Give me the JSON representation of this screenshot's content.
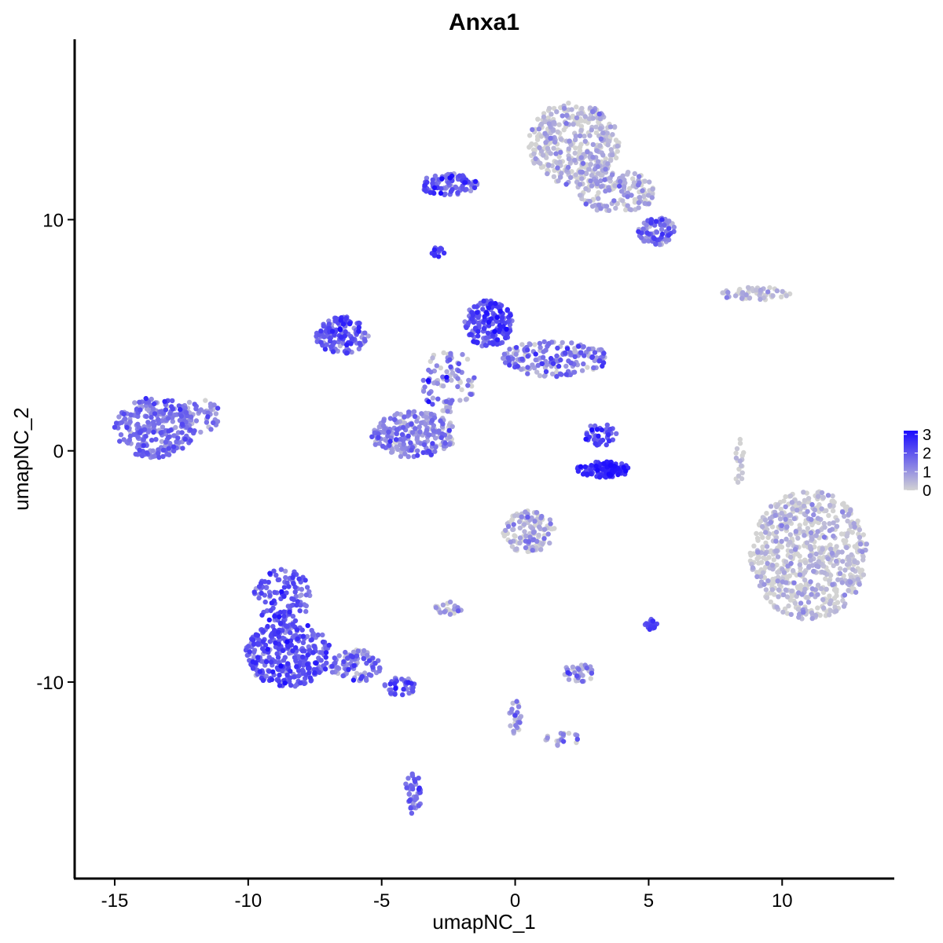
{
  "chart_data": {
    "type": "scatter",
    "title": "Anxa1",
    "xlabel": "umapNC_1",
    "ylabel": "umapNC_2",
    "xlim": [
      -16.5,
      14.2
    ],
    "ylim": [
      -18.5,
      17.8
    ],
    "x_ticks": [
      {
        "value": -15,
        "label": "-15"
      },
      {
        "value": -10,
        "label": "-10"
      },
      {
        "value": -5,
        "label": "-5"
      },
      {
        "value": 0,
        "label": "0"
      },
      {
        "value": 5,
        "label": "5"
      },
      {
        "value": 10,
        "label": "10"
      }
    ],
    "y_ticks": [
      {
        "value": -10,
        "label": "-10"
      },
      {
        "value": 0,
        "label": "0"
      },
      {
        "value": 10,
        "label": "10"
      }
    ],
    "color_scale": {
      "low": "#d3d3d3",
      "high": "#1a0aff",
      "min": 0,
      "max": 3.2,
      "ticks": [
        {
          "value": 0,
          "label": "0"
        },
        {
          "value": 1,
          "label": "1"
        },
        {
          "value": 2,
          "label": "2"
        },
        {
          "value": 3,
          "label": "3"
        }
      ]
    },
    "legend_position": "right",
    "grid": false,
    "clusters": [
      {
        "cx": -13.5,
        "cy": 1.0,
        "rx": 1.5,
        "ry": 1.3,
        "n": 260,
        "mean": 1.5,
        "sd": 0.5
      },
      {
        "cx": -11.8,
        "cy": 1.5,
        "rx": 0.8,
        "ry": 0.7,
        "n": 50,
        "mean": 1.2,
        "sd": 0.6
      },
      {
        "cx": -8.5,
        "cy": -8.8,
        "rx": 1.6,
        "ry": 1.4,
        "n": 340,
        "mean": 1.9,
        "sd": 0.5
      },
      {
        "cx": -8.7,
        "cy": -6.3,
        "rx": 1.1,
        "ry": 1.2,
        "n": 110,
        "mean": 1.9,
        "sd": 0.5
      },
      {
        "cx": -6.0,
        "cy": -9.3,
        "rx": 1.0,
        "ry": 0.7,
        "n": 90,
        "mean": 1.4,
        "sd": 0.7
      },
      {
        "cx": -4.3,
        "cy": -10.2,
        "rx": 0.6,
        "ry": 0.4,
        "n": 40,
        "mean": 1.8,
        "sd": 0.6
      },
      {
        "cx": -3.8,
        "cy": -14.8,
        "rx": 0.35,
        "ry": 0.9,
        "n": 40,
        "mean": 1.6,
        "sd": 0.5
      },
      {
        "cx": -6.5,
        "cy": 5.0,
        "rx": 1.0,
        "ry": 0.8,
        "n": 130,
        "mean": 1.9,
        "sd": 0.6
      },
      {
        "cx": -3.8,
        "cy": 0.7,
        "rx": 1.6,
        "ry": 1.0,
        "n": 240,
        "mean": 1.1,
        "sd": 0.7
      },
      {
        "cx": -1.0,
        "cy": 5.5,
        "rx": 0.9,
        "ry": 1.0,
        "n": 170,
        "mean": 2.1,
        "sd": 0.5
      },
      {
        "cx": 1.5,
        "cy": 4.0,
        "rx": 2.0,
        "ry": 0.8,
        "n": 170,
        "mean": 1.2,
        "sd": 0.7
      },
      {
        "cx": -2.5,
        "cy": 3.0,
        "rx": 1.0,
        "ry": 1.4,
        "n": 90,
        "mean": 1.0,
        "sd": 0.8
      },
      {
        "cx": 3.3,
        "cy": -0.8,
        "rx": 1.0,
        "ry": 0.35,
        "n": 110,
        "mean": 2.6,
        "sd": 0.4
      },
      {
        "cx": 3.2,
        "cy": 0.7,
        "rx": 0.6,
        "ry": 0.5,
        "n": 40,
        "mean": 2.0,
        "sd": 0.6
      },
      {
        "cx": 2.2,
        "cy": 13.3,
        "rx": 1.7,
        "ry": 1.8,
        "n": 380,
        "mean": 0.3,
        "sd": 0.5
      },
      {
        "cx": 3.8,
        "cy": 11.2,
        "rx": 1.5,
        "ry": 0.9,
        "n": 140,
        "mean": 0.5,
        "sd": 0.6
      },
      {
        "cx": -2.5,
        "cy": 11.5,
        "rx": 1.1,
        "ry": 0.5,
        "n": 90,
        "mean": 1.8,
        "sd": 0.6
      },
      {
        "cx": 5.3,
        "cy": 9.5,
        "rx": 0.7,
        "ry": 0.6,
        "n": 80,
        "mean": 1.3,
        "sd": 0.7
      },
      {
        "cx": 0.5,
        "cy": -3.5,
        "rx": 1.0,
        "ry": 0.9,
        "n": 120,
        "mean": 0.4,
        "sd": 0.6
      },
      {
        "cx": -2.5,
        "cy": -6.8,
        "rx": 0.5,
        "ry": 0.3,
        "n": 25,
        "mean": 0.4,
        "sd": 0.6
      },
      {
        "cx": 2.4,
        "cy": -9.6,
        "rx": 0.6,
        "ry": 0.4,
        "n": 40,
        "mean": 0.9,
        "sd": 0.7
      },
      {
        "cx": 11.0,
        "cy": -4.5,
        "rx": 2.2,
        "ry": 2.8,
        "n": 680,
        "mean": 0.15,
        "sd": 0.45
      },
      {
        "cx": 9.0,
        "cy": 6.8,
        "rx": 1.3,
        "ry": 0.3,
        "n": 50,
        "mean": 0.2,
        "sd": 0.4
      },
      {
        "cx": 5.1,
        "cy": -7.5,
        "rx": 0.25,
        "ry": 0.25,
        "n": 18,
        "mean": 2.3,
        "sd": 0.4
      },
      {
        "cx": -2.9,
        "cy": 8.6,
        "rx": 0.25,
        "ry": 0.2,
        "n": 14,
        "mean": 2.2,
        "sd": 0.4
      },
      {
        "cx": 0.0,
        "cy": -11.5,
        "rx": 0.25,
        "ry": 0.8,
        "n": 25,
        "mean": 1.2,
        "sd": 0.7
      },
      {
        "cx": 1.8,
        "cy": -12.5,
        "rx": 0.7,
        "ry": 0.3,
        "n": 20,
        "mean": 0.8,
        "sd": 0.7
      },
      {
        "cx": 8.4,
        "cy": -0.3,
        "rx": 0.2,
        "ry": 1.2,
        "n": 18,
        "mean": 0.1,
        "sd": 0.3
      }
    ]
  }
}
